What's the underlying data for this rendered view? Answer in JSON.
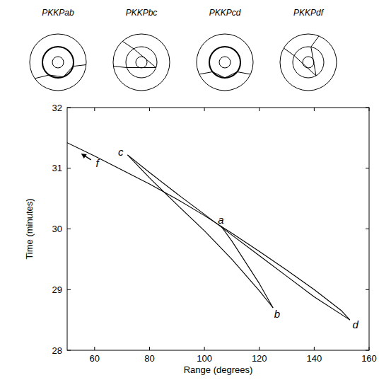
{
  "chart_data": {
    "type": "line",
    "x_label": "Range (degrees)",
    "y_label": "Time (minutes)",
    "xlim": [
      50,
      160
    ],
    "ylim": [
      28,
      32
    ],
    "xticks": [
      60,
      80,
      100,
      120,
      140,
      160
    ],
    "yticks": [
      28,
      29,
      30,
      31,
      32
    ],
    "grid": false,
    "series": [
      {
        "name": "PKKPab",
        "color": "#000000",
        "x": [
          106,
          110,
          115,
          120,
          125
        ],
        "values": [
          30.05,
          29.8,
          29.45,
          29.1,
          28.7
        ]
      },
      {
        "name": "PKKPbc",
        "color": "#000000",
        "x": [
          72,
          80,
          90,
          100,
          110,
          120,
          125
        ],
        "values": [
          31.22,
          30.84,
          30.4,
          29.97,
          29.5,
          28.98,
          28.7
        ]
      },
      {
        "name": "PKKPcd",
        "color": "#000000",
        "x": [
          72,
          80,
          90,
          100,
          110,
          120,
          130,
          140,
          153
        ],
        "values": [
          31.22,
          30.93,
          30.58,
          30.24,
          29.9,
          29.56,
          29.22,
          28.88,
          28.5
        ]
      },
      {
        "name": "PKKPdf",
        "color": "#000000",
        "x": [
          50,
          60,
          70,
          80,
          90,
          100,
          110,
          120,
          130,
          140,
          150,
          153
        ],
        "values": [
          31.42,
          31.2,
          30.97,
          30.74,
          30.49,
          30.22,
          29.93,
          29.63,
          29.32,
          29.0,
          28.65,
          28.5
        ]
      }
    ],
    "annotations": [
      {
        "text": "a",
        "x": 106,
        "y": 30.14
      },
      {
        "text": "b",
        "x": 126.5,
        "y": 28.6
      },
      {
        "text": "c",
        "x": 69.5,
        "y": 31.27
      },
      {
        "text": "d",
        "x": 155,
        "y": 28.42
      },
      {
        "text": "f",
        "x": 61,
        "y": 31.08
      }
    ]
  }
}
